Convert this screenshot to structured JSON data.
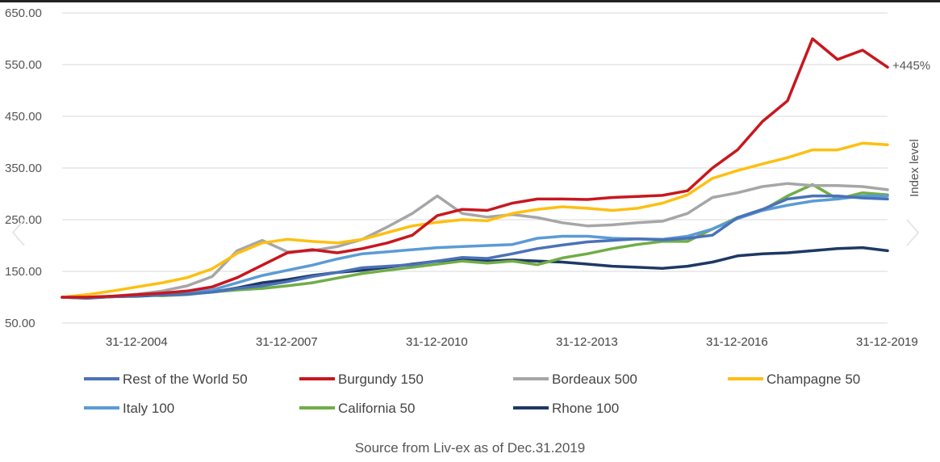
{
  "chart_data": {
    "type": "line",
    "ylabel": "Index level",
    "ylim": [
      50,
      650
    ],
    "yticks": [
      "650.00",
      "550.00",
      "450.00",
      "350.00",
      "250.00",
      "150.00",
      "50.00"
    ],
    "xticks": [
      "31-12-2004",
      "31-12-2007",
      "31-12-2010",
      "31-12-2013",
      "31-12-2016",
      "31-12-2019"
    ],
    "grid": "horizontal",
    "legend_position": "bottom",
    "end_annotation": "+445%",
    "source": "Source from Liv-ex as of Dec.31.2019",
    "x": [
      2003.5,
      2004.0,
      2004.5,
      2005.0,
      2005.5,
      2006.0,
      2006.5,
      2007.0,
      2007.5,
      2008.0,
      2008.5,
      2009.0,
      2009.5,
      2010.0,
      2010.5,
      2011.0,
      2011.5,
      2012.0,
      2012.5,
      2013.0,
      2013.5,
      2014.0,
      2014.5,
      2015.0,
      2015.5,
      2016.0,
      2016.5,
      2017.0,
      2017.5,
      2018.0,
      2018.5,
      2019.0,
      2019.5,
      2020.0
    ],
    "series": [
      {
        "name": "Rest of the World 50",
        "color": "#4a72b8",
        "values": [
          100,
          98,
          101,
          103,
          104,
          106,
          110,
          117,
          122,
          130,
          140,
          148,
          157,
          160,
          163,
          170,
          177,
          175,
          184,
          194,
          201,
          207,
          210,
          213,
          211,
          214,
          220,
          254,
          270,
          290,
          296,
          296,
          292,
          290
        ]
      },
      {
        "name": "Burgundy 150",
        "color": "#c8171e",
        "values": [
          100,
          100,
          102,
          105,
          108,
          112,
          120,
          138,
          162,
          186,
          192,
          186,
          194,
          205,
          220,
          258,
          270,
          268,
          282,
          290,
          290,
          289,
          293,
          295,
          297,
          306,
          350,
          385,
          440,
          480,
          600,
          560,
          578,
          545
        ]
      },
      {
        "name": "Bordeaux 500",
        "color": "#a6a6a6",
        "values": [
          100,
          100,
          102,
          106,
          112,
          122,
          140,
          190,
          210,
          188,
          190,
          198,
          212,
          236,
          262,
          296,
          262,
          255,
          260,
          254,
          244,
          238,
          240,
          244,
          247,
          262,
          293,
          302,
          314,
          320,
          316,
          316,
          314,
          308
        ]
      },
      {
        "name": "Champagne 50",
        "color": "#fdbf12",
        "values": [
          100,
          105,
          112,
          120,
          128,
          138,
          155,
          185,
          205,
          212,
          208,
          205,
          212,
          225,
          238,
          245,
          250,
          248,
          262,
          270,
          275,
          272,
          268,
          272,
          282,
          298,
          330,
          345,
          358,
          370,
          385,
          385,
          398,
          395
        ]
      },
      {
        "name": "Italy 100",
        "color": "#5b9bd5",
        "values": [
          100,
          100,
          101,
          103,
          105,
          108,
          114,
          128,
          142,
          152,
          162,
          174,
          184,
          188,
          192,
          196,
          198,
          200,
          202,
          214,
          218,
          218,
          214,
          213,
          212,
          218,
          232,
          252,
          268,
          278,
          286,
          290,
          296,
          296
        ]
      },
      {
        "name": "California 50",
        "color": "#70ad47",
        "values": [
          100,
          98,
          102,
          104,
          103,
          105,
          110,
          114,
          117,
          122,
          128,
          137,
          146,
          152,
          158,
          164,
          170,
          166,
          170,
          163,
          176,
          184,
          194,
          202,
          208,
          208,
          232,
          254,
          268,
          296,
          318,
          290,
          302,
          298
        ]
      },
      {
        "name": "Rhone 100",
        "color": "#1f3864",
        "values": [
          100,
          99,
          101,
          102,
          104,
          106,
          110,
          118,
          128,
          134,
          142,
          148,
          152,
          158,
          164,
          170,
          172,
          170,
          172,
          170,
          168,
          164,
          160,
          158,
          156,
          160,
          168,
          180,
          184,
          186,
          190,
          194,
          196,
          190
        ]
      }
    ]
  }
}
